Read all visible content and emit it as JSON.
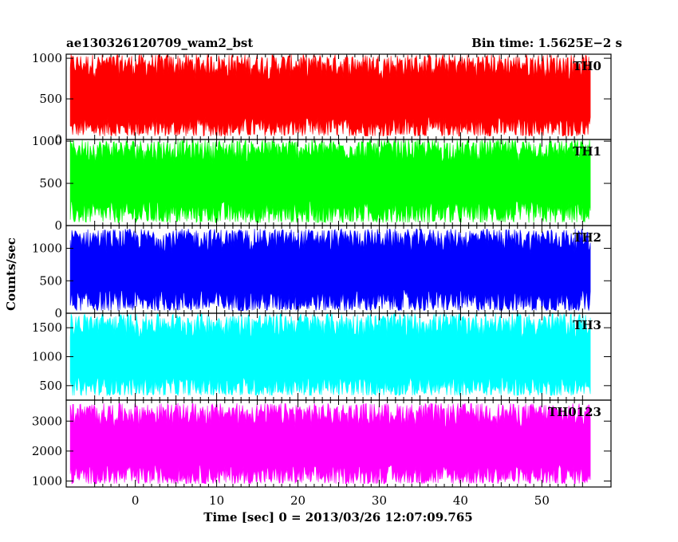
{
  "chart_data": {
    "type": "line",
    "title": "ae130326120709_wam2_bst",
    "subtitle": "Bin time: 1.5625E−2 s",
    "xlabel": "Time [sec] 0 = 2013/03/26 12:07:09.765",
    "ylabel": "Counts/sec",
    "xlim": [
      -8.5,
      58.5
    ],
    "x_data_range": [
      -8,
      56
    ],
    "x_ticks": [
      0,
      10,
      20,
      30,
      40,
      50
    ],
    "grid": false,
    "panels": [
      {
        "name": "TH0",
        "color": "#ff0000",
        "ylim": [
          0,
          1050
        ],
        "y_ticks": [
          0,
          500,
          1000
        ],
        "min_approx": 20,
        "max_approx": 1050,
        "mean_approx": 450
      },
      {
        "name": "TH1",
        "color": "#00ff00",
        "ylim": [
          0,
          1020
        ],
        "y_ticks": [
          0,
          500,
          1000
        ],
        "min_approx": 10,
        "max_approx": 1020,
        "mean_approx": 480
      },
      {
        "name": "TH2",
        "color": "#0000ff",
        "ylim": [
          0,
          1350
        ],
        "y_ticks": [
          0,
          500,
          1000
        ],
        "min_approx": 10,
        "max_approx": 1300,
        "mean_approx": 600
      },
      {
        "name": "TH3",
        "color": "#00ffff",
        "ylim": [
          250,
          1750
        ],
        "y_ticks": [
          500,
          1000,
          1500
        ],
        "min_approx": 300,
        "max_approx": 1750,
        "mean_approx": 900
      },
      {
        "name": "TH0123",
        "color": "#ff00ff",
        "ylim": [
          800,
          3700
        ],
        "y_ticks": [
          1000,
          2000,
          3000
        ],
        "min_approx": 850,
        "max_approx": 3600,
        "mean_approx": 2000
      }
    ]
  }
}
